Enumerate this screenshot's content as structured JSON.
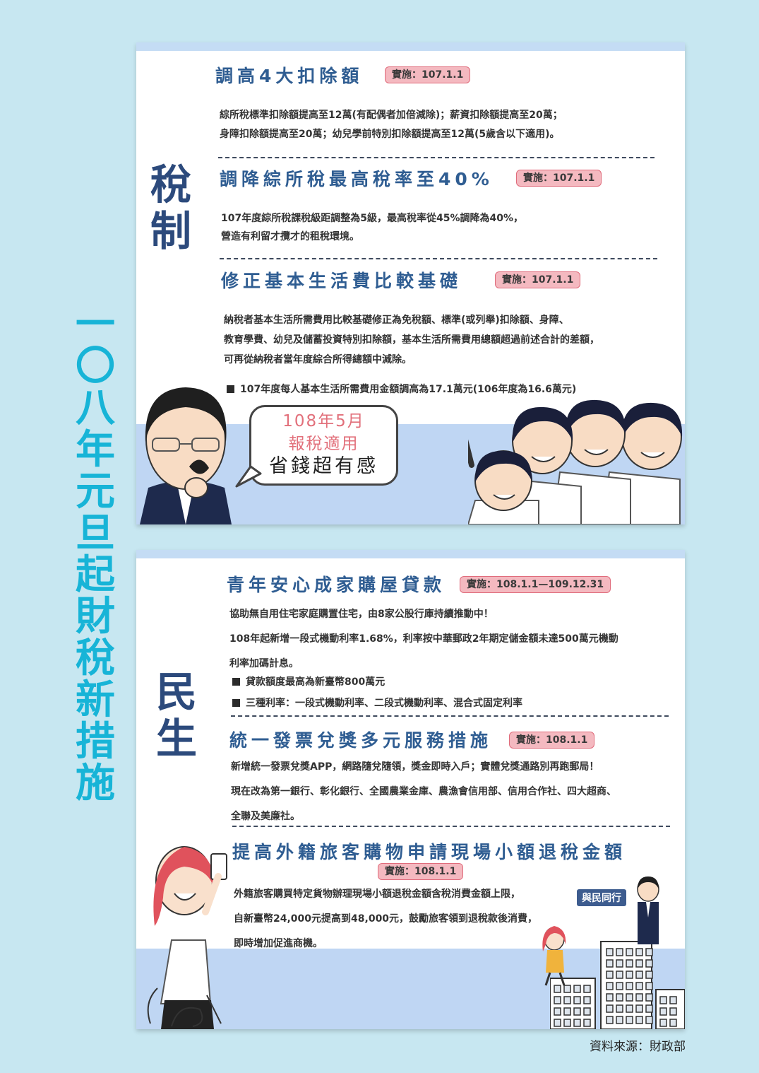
{
  "vertical_title": "一〇八年元旦起財稅新措施",
  "tax": {
    "category": "稅制",
    "sections": [
      {
        "heading": "調高4大扣除額",
        "badge": "實施：107.1.1",
        "lines": [
          "綜所稅標準扣除額提高至12萬(有配偶者加倍減除)；薪資扣除額提高至20萬；",
          "身障扣除額提高至20萬；幼兒學前特別扣除額提高至12萬(5歲含以下適用)。"
        ]
      },
      {
        "heading": "調降綜所稅最高稅率至40%",
        "badge": "實施：107.1.1",
        "lines": [
          "107年度綜所稅課稅級距調整為5級，最高稅率從45%調降為40%，",
          "營造有利留才攬才的租稅環境。"
        ]
      },
      {
        "heading": "修正基本生活費比較基礎",
        "badge": "實施：107.1.1",
        "lines": [
          "納稅者基本生活所需費用比較基礎修正為免稅額、標準(或列舉)扣除額、身障、",
          "教育學費、幼兒及儲蓄投資特別扣除額，基本生活所需費用總額超過前述合計的差額，",
          "可再從納稅者當年度綜合所得總額中減除。"
        ],
        "bullet": "107年度每人基本生活所需費用金額調高為17.1萬元(106年度為16.6萬元)"
      }
    ],
    "bubble": {
      "line1": "108年5月",
      "line2": "報稅適用",
      "line3": "省錢超有感"
    }
  },
  "life": {
    "category": "民生",
    "sections": [
      {
        "heading": "青年安心成家購屋貸款",
        "badge": "實施：108.1.1—109.12.31",
        "lines": [
          "協助無自用住宅家庭購置住宅，由8家公股行庫持續推動中！",
          "108年起新增一段式機動利率1.68%，利率按中華郵政2年期定儲金額未達500萬元機動",
          "利率加碼計息。"
        ],
        "bullets": [
          "貸款額度最高為新臺幣800萬元",
          "三種利率：一段式機動利率、二段式機動利率、混合式固定利率"
        ]
      },
      {
        "heading": "統一發票兌獎多元服務措施",
        "badge": "實施：108.1.1",
        "lines": [
          "新增統一發票兌獎APP，網路隨兌隨領，獎金即時入戶；實體兌獎通路別再跑郵局！",
          "現在改為第一銀行、彰化銀行、全國農業金庫、農漁會信用部、信用合作社、四大超商、",
          "全聯及美廉社。"
        ]
      },
      {
        "heading": "提高外籍旅客購物申請現場小額退稅金額",
        "badge": "實施：108.1.1",
        "lines": [
          "外籍旅客購買特定貨物辦理現場小額退稅金額含稅消費金額上限，",
          "自新臺幣24,000元提高到48,000元，鼓勵旅客領到退稅款後消費，",
          "即時增加促進商機。"
        ]
      }
    ],
    "tag": "與民同行"
  },
  "source": "資料來源：財政部",
  "colors": {
    "background": "#c7e7f1",
    "title": "#17b4d7",
    "heading": "#2f5d92",
    "badge": "#f4b9c0",
    "band": "#bfd6f3"
  }
}
